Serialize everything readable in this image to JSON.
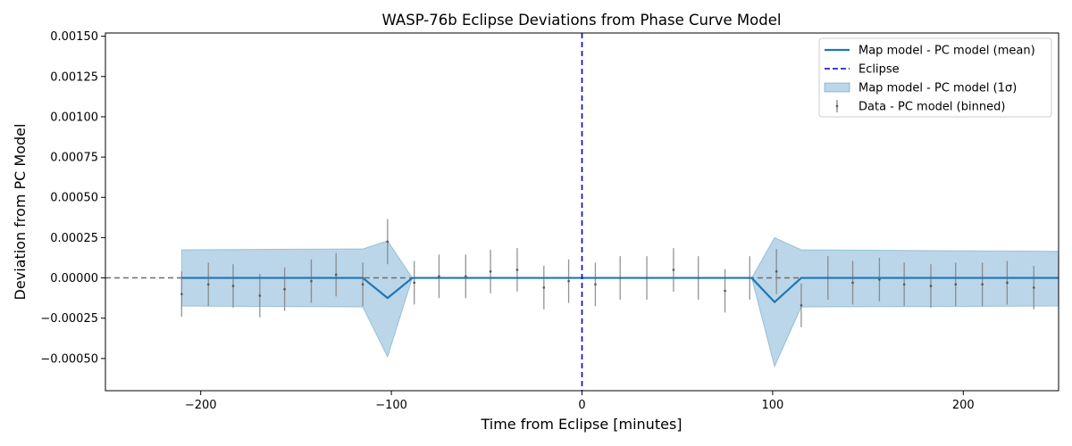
{
  "chart_data": {
    "type": "line",
    "title": "WASP-76b Eclipse Deviations from Phase Curve Model",
    "xlabel": "Time from Eclipse [minutes]",
    "ylabel": "Deviation from PC Model",
    "xlim": [
      -250,
      250
    ],
    "ylim": [
      -0.0007,
      0.00152
    ],
    "xticks": [
      -200,
      -100,
      0,
      100,
      200
    ],
    "xtick_labels": [
      "−200",
      "−100",
      "0",
      "100",
      "200"
    ],
    "yticks": [
      -0.0005,
      -0.00025,
      0,
      0.00025,
      0.0005,
      0.00075,
      0.001,
      0.00125,
      0.0015
    ],
    "ytick_labels": [
      "−0.00050",
      "−0.00025",
      "0.00000",
      "0.00025",
      "0.00050",
      "0.00075",
      "0.00100",
      "0.00125",
      "0.00150"
    ],
    "grid": false,
    "legend_position": "top-right",
    "zero_line": {
      "y": 0,
      "color": "#6e6e6e",
      "style": "dashed"
    },
    "eclipse_line": {
      "x": 0,
      "color": "#0000cc",
      "style": "dashed"
    },
    "legend": [
      {
        "label": "Map model - PC model (mean)",
        "kind": "line",
        "color": "#1f77b4"
      },
      {
        "label": "Eclipse",
        "kind": "dashed",
        "color": "#0000cc"
      },
      {
        "label": "Map model - PC model (1σ)",
        "kind": "patch",
        "color": "#1f77b4"
      },
      {
        "label": "Data - PC model (binned)",
        "kind": "errorbar",
        "color": "#808080"
      }
    ],
    "mean_model": {
      "x": [
        -210,
        -115,
        -102,
        -89,
        89,
        101,
        115,
        250
      ],
      "y": [
        0,
        0,
        -0.000125,
        0,
        0,
        -0.00015,
        0,
        0
      ]
    },
    "sigma_band": {
      "x": [
        -210,
        -115,
        -102,
        -89,
        89,
        101,
        115,
        250
      ],
      "upper": [
        0.000175,
        0.00018,
        0.00023,
        0.0,
        0.0,
        0.00025,
        0.000175,
        0.000165
      ],
      "lower": [
        -0.000175,
        -0.00018,
        -0.00049,
        0.0,
        0.0,
        -0.00055,
        -0.00018,
        -0.000175
      ]
    },
    "binned_data": {
      "x": [
        -210,
        -196,
        -183,
        -169,
        -156,
        -142,
        -129,
        -115,
        -102,
        -88,
        -75,
        -61,
        -48,
        -34,
        -20,
        -7,
        7,
        20,
        34,
        48,
        61,
        75,
        88,
        102,
        115,
        129,
        142,
        156,
        169,
        183,
        196,
        210,
        223,
        237
      ],
      "y": [
        -0.0001,
        -4e-05,
        -5e-05,
        -0.00011,
        -7e-05,
        -2e-05,
        2e-05,
        -4e-05,
        0.000225,
        -3e-05,
        1e-05,
        1e-05,
        4e-05,
        5e-05,
        -6e-05,
        -2e-05,
        -4e-05,
        0.0,
        0.0,
        5e-05,
        0.0,
        -8e-05,
        0.0,
        4e-05,
        -0.00017,
        0.0,
        -3e-05,
        -1e-05,
        -4e-05,
        -5e-05,
        -4e-05,
        -4e-05,
        -3e-05,
        -6e-05
      ],
      "err": [
        0.00014,
        0.000135,
        0.000135,
        0.000135,
        0.000135,
        0.000135,
        0.000135,
        0.000135,
        0.00014,
        0.000135,
        0.000135,
        0.000135,
        0.000135,
        0.000135,
        0.000135,
        0.000135,
        0.000135,
        0.000135,
        0.000135,
        0.000135,
        0.000135,
        0.000135,
        0.000135,
        0.00014,
        0.000135,
        0.000135,
        0.000135,
        0.000135,
        0.000135,
        0.000135,
        0.000135,
        0.000135,
        0.000135,
        0.000135
      ]
    }
  }
}
